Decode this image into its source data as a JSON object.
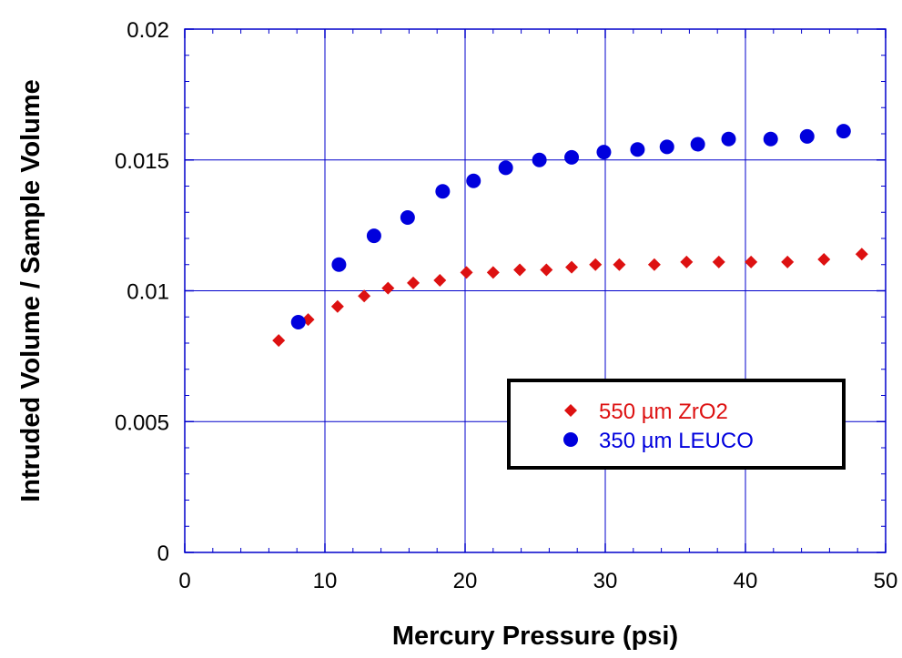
{
  "chart_data": {
    "type": "scatter",
    "title": "",
    "xlabel": "Mercury Pressure (psi)",
    "ylabel": "Intruded Volume / Sample Volume",
    "xlim": [
      0,
      50
    ],
    "ylim": [
      0,
      0.02
    ],
    "x_ticks": [
      "0",
      "10",
      "20",
      "30",
      "40",
      "50"
    ],
    "y_ticks": [
      "0",
      "0.005",
      "0.01",
      "0.015",
      "0.02"
    ],
    "grid": true,
    "legend_position": "lower-right",
    "series": [
      {
        "name": "550 µm ZrO2",
        "marker": "diamond",
        "color": "#dd1111",
        "points": [
          [
            6.7,
            0.0081
          ],
          [
            8.8,
            0.0089
          ],
          [
            10.9,
            0.0094
          ],
          [
            12.8,
            0.0098
          ],
          [
            14.5,
            0.0101
          ],
          [
            16.3,
            0.0103
          ],
          [
            18.2,
            0.0104
          ],
          [
            20.1,
            0.0107
          ],
          [
            22.0,
            0.0107
          ],
          [
            23.9,
            0.0108
          ],
          [
            25.8,
            0.0108
          ],
          [
            27.6,
            0.0109
          ],
          [
            29.3,
            0.011
          ],
          [
            31.0,
            0.011
          ],
          [
            33.5,
            0.011
          ],
          [
            35.8,
            0.0111
          ],
          [
            38.1,
            0.0111
          ],
          [
            40.4,
            0.0111
          ],
          [
            43.0,
            0.0111
          ],
          [
            45.6,
            0.0112
          ],
          [
            48.3,
            0.0114
          ]
        ]
      },
      {
        "name": "350 µm LEUCO",
        "marker": "circle",
        "color": "#0000dd",
        "points": [
          [
            8.1,
            0.0088
          ],
          [
            11.0,
            0.011
          ],
          [
            13.5,
            0.0121
          ],
          [
            15.9,
            0.0128
          ],
          [
            18.4,
            0.0138
          ],
          [
            20.6,
            0.0142
          ],
          [
            22.9,
            0.0147
          ],
          [
            25.3,
            0.015
          ],
          [
            27.6,
            0.0151
          ],
          [
            29.9,
            0.0153
          ],
          [
            32.3,
            0.0154
          ],
          [
            34.4,
            0.0155
          ],
          [
            36.6,
            0.0156
          ],
          [
            38.8,
            0.0158
          ],
          [
            41.8,
            0.0158
          ],
          [
            44.4,
            0.0159
          ],
          [
            47.0,
            0.0161
          ]
        ]
      }
    ]
  }
}
